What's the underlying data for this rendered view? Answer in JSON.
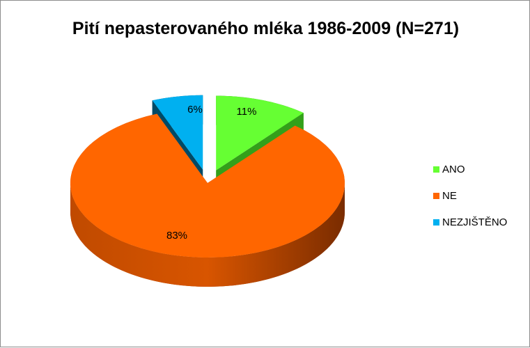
{
  "chart_data": {
    "type": "pie",
    "title": "Pití nepasterovaného mléka 1986-2009 (N=271)",
    "slices": [
      {
        "name": "ANO",
        "value": 11,
        "label": "11%",
        "color": "#66ff33",
        "side": "#33a01a",
        "exploded": true
      },
      {
        "name": "NE",
        "value": 83,
        "label": "83%",
        "color": "#ff6600",
        "side": "#a03d00",
        "exploded": false
      },
      {
        "name": "NEZJIŠTĚNO",
        "value": 6,
        "label": "6%",
        "color": "#00b0f0",
        "side": "#004a66",
        "exploded": true
      }
    ],
    "legend_position": "right",
    "style": "3d-pie"
  }
}
